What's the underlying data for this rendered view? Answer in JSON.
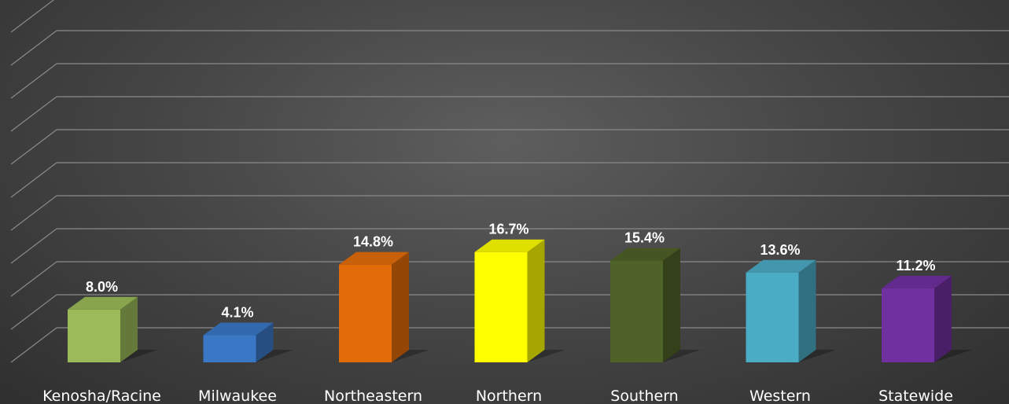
{
  "chart_data": {
    "type": "bar",
    "categories": [
      "Kenosha/Racine",
      "Milwaukee",
      "Northeastern",
      "Northern",
      "Southern",
      "Western",
      "Statewide"
    ],
    "values": [
      8.0,
      4.1,
      14.8,
      16.7,
      15.4,
      13.6,
      11.2
    ],
    "data_labels": [
      "8.0%",
      "4.1%",
      "14.8%",
      "16.7%",
      "15.4%",
      "13.6%",
      "11.2%"
    ],
    "title": "",
    "xlabel": "",
    "ylabel": "",
    "ylim": [
      0,
      50
    ],
    "y_tick_step": 5,
    "grid": true,
    "style": "3d-column",
    "colors": [
      "#9bbb59",
      "#3a78c6",
      "#e36c0a",
      "#ffff00",
      "#4f6228",
      "#4bacc6",
      "#7030a0"
    ]
  }
}
